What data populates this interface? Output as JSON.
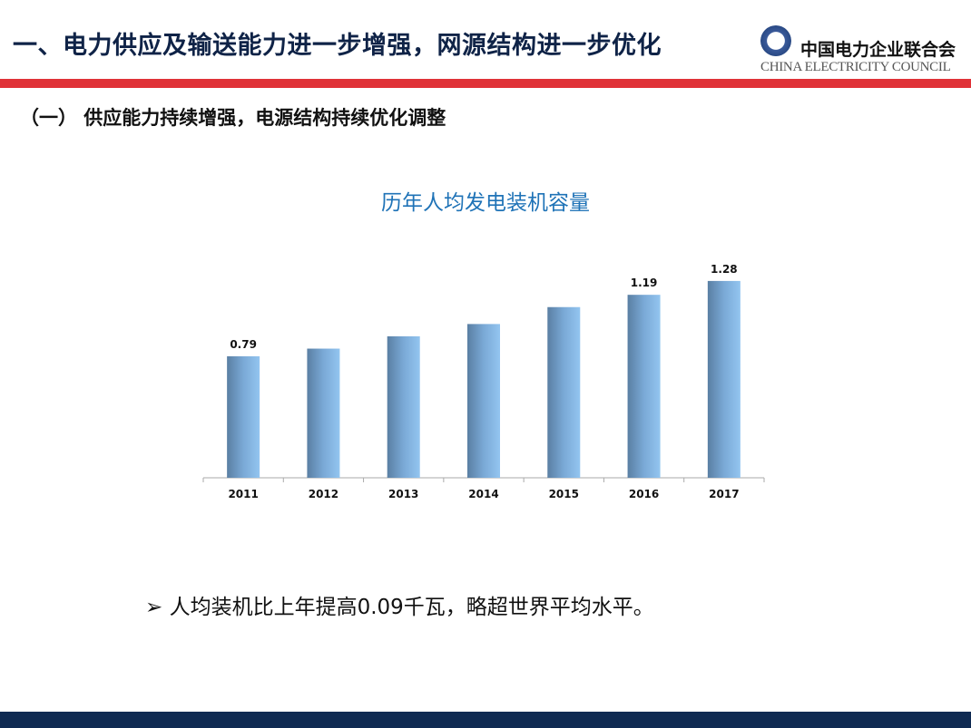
{
  "header": {
    "title": "一、电力供应及输送能力进一步增强，网源结构进一步优化",
    "logo_cn": "中国电力企业联合会",
    "logo_en": "CHINA ELECTRICITY COUNCIL"
  },
  "subtitle": "（一） 供应能力持续增强，电源结构持续优化调整",
  "bullet": {
    "marker": "➢",
    "text": "人均装机比上年提高0.09千瓦，略超世界平均水平。"
  },
  "colors": {
    "accent_red": "#e03238",
    "navy": "#0f2a52",
    "bar_light": "#93c5f0",
    "bar_dark": "#5a7fa3",
    "chart_title": "#1f73b7"
  },
  "chart_data": {
    "type": "bar",
    "title": "历年人均发电装机容量",
    "categories": [
      "2011",
      "2012",
      "2013",
      "2014",
      "2015",
      "2016",
      "2017"
    ],
    "values": [
      0.79,
      0.84,
      0.92,
      1.0,
      1.11,
      1.19,
      1.28
    ],
    "data_labels": [
      "0.79",
      "",
      "",
      "",
      "",
      "1.19",
      "1.28"
    ],
    "xlabel": "",
    "ylabel": "",
    "ylim": [
      0,
      1.4
    ],
    "grid": false,
    "legend": "none"
  }
}
